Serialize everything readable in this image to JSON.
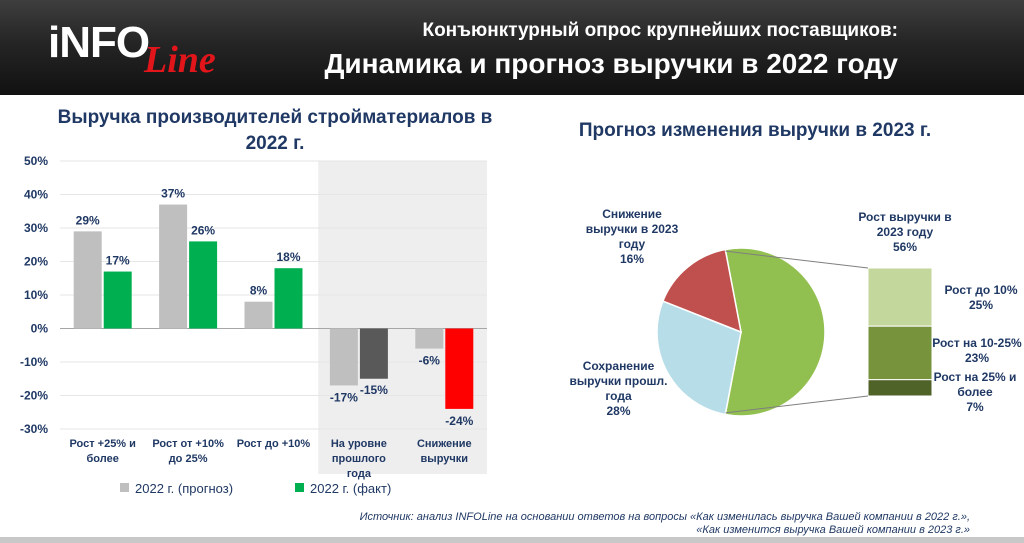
{
  "header": {
    "logo_main": "iNFO",
    "logo_sub": "Line",
    "subtitle": "Конъюнктурный опрос крупнейших поставщиков:",
    "title": "Динамика и прогноз выручки в 2022 году"
  },
  "colors": {
    "prognoz": "#bfbfbf",
    "fakt": "#00b050",
    "fakt_level_negative": "#595959",
    "fakt_decline": "#ff0000",
    "highlight_bg": "#eeeeee",
    "pie_growth": "#92c050",
    "pie_decline": "#c0504d",
    "pie_keep": "#b7dde8",
    "growth_lt10": "#c3d69b",
    "growth_10_25": "#77933c",
    "growth_25plus": "#4f6228"
  },
  "chart_data": [
    {
      "type": "bar",
      "title": "Выручка производителей стройматериалов в 2022 г.",
      "categories": [
        "Рост +25% и более",
        "Рост от +10% до 25%",
        "Рост до +10%",
        "На уровне прошлого года",
        "Снижение выручки"
      ],
      "series": [
        {
          "name": "2022 г. (прогноз)",
          "values": [
            29,
            37,
            8,
            -17,
            -6
          ]
        },
        {
          "name": "2022 г. (факт)",
          "values": [
            17,
            26,
            18,
            -15,
            -24
          ]
        }
      ],
      "value_labels": {
        "prognoz": [
          "29%",
          "37%",
          "8%",
          "-17%",
          "-6%"
        ],
        "fakt": [
          "17%",
          "26%",
          "18%",
          "-15%",
          "-24%"
        ]
      },
      "yticks": [
        "50%",
        "40%",
        "30%",
        "20%",
        "10%",
        "0%",
        "-10%",
        "-20%",
        "-30%"
      ],
      "ylim": [
        -30,
        50
      ],
      "legend_position": "bottom",
      "highlighted_categories": [
        "На уровне прошлого года",
        "Снижение выручки"
      ]
    },
    {
      "type": "pie",
      "title": "Прогноз изменения выручки в 2023 г.",
      "slices": [
        {
          "label": "Рост выручки в 2023 году",
          "value": 56,
          "value_label": "56%"
        },
        {
          "label": "Сохранение выручки прошл. года",
          "value": 28,
          "value_label": "28%"
        },
        {
          "label": "Снижение выручки в 2023 году",
          "value": 16,
          "value_label": "16%"
        }
      ],
      "breakdown": {
        "of": "Рост выручки в 2023 году",
        "segments": [
          {
            "label": "Рост до 10%",
            "value": 25,
            "value_label": "25%"
          },
          {
            "label": "Рост на 10-25%",
            "value": 23,
            "value_label": "23%"
          },
          {
            "label": "Рост на 25% и более",
            "value": 7,
            "value_label": "7%"
          }
        ]
      }
    }
  ],
  "source": {
    "line1": "Источник: анализ INFOLine на основании ответов на вопросы «Как изменилась выручка Вашей компании в 2022 г.»,",
    "line2": "«Как изменится выручка Вашей компании в 2023 г.»"
  }
}
